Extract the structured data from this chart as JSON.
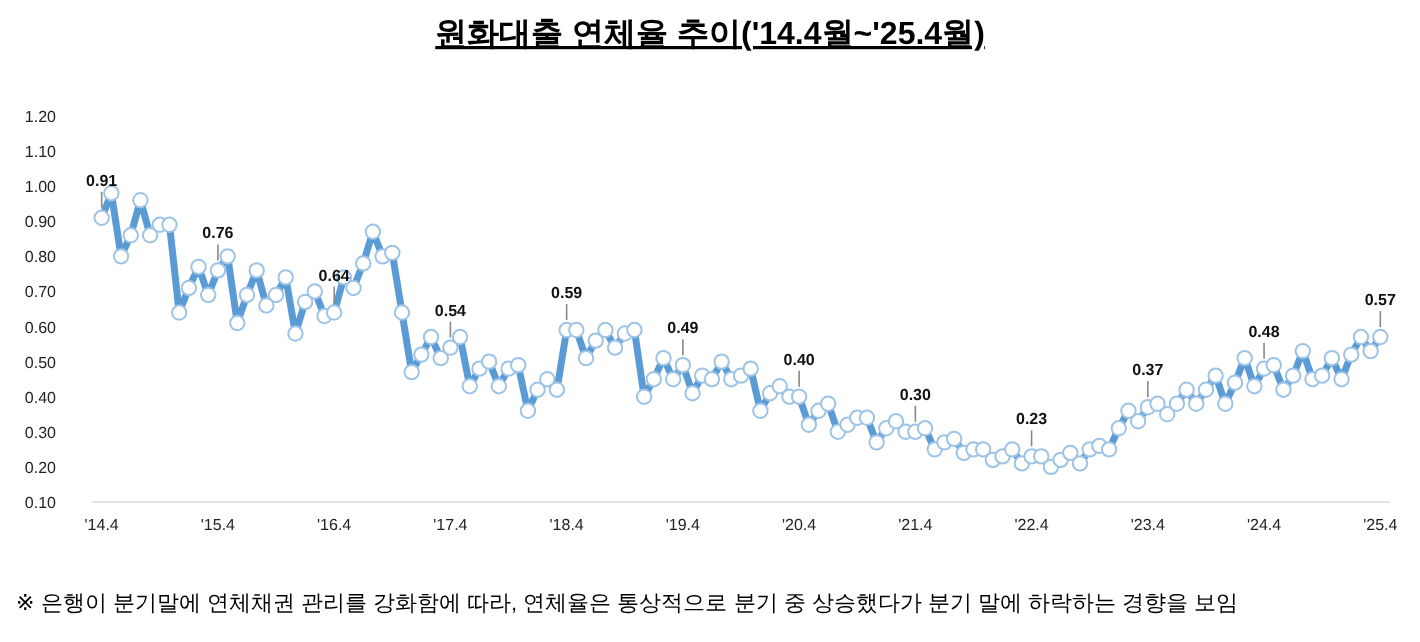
{
  "chart_data": {
    "type": "line",
    "title": "원화대출 연체율 추이('14.4월~'25.4월)",
    "x": [
      "2014-04",
      "2014-05",
      "2014-06",
      "2014-07",
      "2014-08",
      "2014-09",
      "2014-10",
      "2014-11",
      "2014-12",
      "2015-01",
      "2015-02",
      "2015-03",
      "2015-04",
      "2015-05",
      "2015-06",
      "2015-07",
      "2015-08",
      "2015-09",
      "2015-10",
      "2015-11",
      "2015-12",
      "2016-01",
      "2016-02",
      "2016-03",
      "2016-04",
      "2016-05",
      "2016-06",
      "2016-07",
      "2016-08",
      "2016-09",
      "2016-10",
      "2016-11",
      "2016-12",
      "2017-01",
      "2017-02",
      "2017-03",
      "2017-04",
      "2017-05",
      "2017-06",
      "2017-07",
      "2017-08",
      "2017-09",
      "2017-10",
      "2017-11",
      "2017-12",
      "2018-01",
      "2018-02",
      "2018-03",
      "2018-04",
      "2018-05",
      "2018-06",
      "2018-07",
      "2018-08",
      "2018-09",
      "2018-10",
      "2018-11",
      "2018-12",
      "2019-01",
      "2019-02",
      "2019-03",
      "2019-04",
      "2019-05",
      "2019-06",
      "2019-07",
      "2019-08",
      "2019-09",
      "2019-10",
      "2019-11",
      "2019-12",
      "2020-01",
      "2020-02",
      "2020-03",
      "2020-04",
      "2020-05",
      "2020-06",
      "2020-07",
      "2020-08",
      "2020-09",
      "2020-10",
      "2020-11",
      "2020-12",
      "2021-01",
      "2021-02",
      "2021-03",
      "2021-04",
      "2021-05",
      "2021-06",
      "2021-07",
      "2021-08",
      "2021-09",
      "2021-10",
      "2021-11",
      "2021-12",
      "2022-01",
      "2022-02",
      "2022-03",
      "2022-04",
      "2022-05",
      "2022-06",
      "2022-07",
      "2022-08",
      "2022-09",
      "2022-10",
      "2022-11",
      "2022-12",
      "2023-01",
      "2023-02",
      "2023-03",
      "2023-04",
      "2023-05",
      "2023-06",
      "2023-07",
      "2023-08",
      "2023-09",
      "2023-10",
      "2023-11",
      "2023-12",
      "2024-01",
      "2024-02",
      "2024-03",
      "2024-04",
      "2024-05",
      "2024-06",
      "2024-07",
      "2024-08",
      "2024-09",
      "2024-10",
      "2024-11",
      "2024-12",
      "2025-01",
      "2025-02",
      "2025-03",
      "2025-04"
    ],
    "series": [
      {
        "color": "#5b9bd5",
        "values": [
          0.91,
          0.98,
          0.8,
          0.86,
          0.96,
          0.86,
          0.89,
          0.89,
          0.64,
          0.71,
          0.77,
          0.69,
          0.76,
          0.8,
          0.61,
          0.69,
          0.76,
          0.66,
          0.69,
          0.74,
          0.58,
          0.67,
          0.7,
          0.63,
          0.64,
          0.74,
          0.71,
          0.78,
          0.87,
          0.8,
          0.81,
          0.64,
          0.47,
          0.52,
          0.57,
          0.51,
          0.54,
          0.57,
          0.43,
          0.48,
          0.5,
          0.43,
          0.48,
          0.49,
          0.36,
          0.42,
          0.45,
          0.42,
          0.59,
          0.59,
          0.51,
          0.56,
          0.59,
          0.54,
          0.58,
          0.59,
          0.4,
          0.45,
          0.51,
          0.45,
          0.49,
          0.41,
          0.46,
          0.45,
          0.5,
          0.45,
          0.46,
          0.48,
          0.36,
          0.41,
          0.43,
          0.4,
          0.4,
          0.32,
          0.36,
          0.38,
          0.3,
          0.32,
          0.34,
          0.34,
          0.27,
          0.31,
          0.33,
          0.3,
          0.3,
          0.31,
          0.25,
          0.27,
          0.28,
          0.24,
          0.25,
          0.25,
          0.22,
          0.23,
          0.25,
          0.21,
          0.23,
          0.23,
          0.2,
          0.22,
          0.24,
          0.21,
          0.25,
          0.26,
          0.25,
          0.31,
          0.36,
          0.33,
          0.37,
          0.38,
          0.35,
          0.38,
          0.42,
          0.38,
          0.42,
          0.46,
          0.38,
          0.44,
          0.51,
          0.43,
          0.48,
          0.49,
          0.42,
          0.46,
          0.53,
          0.45,
          0.46,
          0.51,
          0.45,
          0.52,
          0.57,
          0.53,
          0.57
        ]
      }
    ],
    "marker": "circle",
    "xlim": [
      "2014-03",
      "2025-05"
    ],
    "xticks": [
      {
        "value": "2014-04",
        "label": "'14.4"
      },
      {
        "value": "2015-04",
        "label": "'15.4"
      },
      {
        "value": "2016-04",
        "label": "'16.4"
      },
      {
        "value": "2017-04",
        "label": "'17.4"
      },
      {
        "value": "2018-04",
        "label": "'18.4"
      },
      {
        "value": "2019-04",
        "label": "'19.4"
      },
      {
        "value": "2020-04",
        "label": "'20.4"
      },
      {
        "value": "2021-04",
        "label": "'21.4"
      },
      {
        "value": "2022-04",
        "label": "'22.4"
      },
      {
        "value": "2023-04",
        "label": "'23.4"
      },
      {
        "value": "2024-04",
        "label": "'24.4"
      },
      {
        "value": "2025-04",
        "label": "'25.4"
      }
    ],
    "ylim": [
      0.1,
      1.2
    ],
    "yticks": [
      {
        "value": 0.1,
        "label": "0.10"
      },
      {
        "value": 0.2,
        "label": "0.20"
      },
      {
        "value": 0.3,
        "label": "0.30"
      },
      {
        "value": 0.4,
        "label": "0.40"
      },
      {
        "value": 0.5,
        "label": "0.50"
      },
      {
        "value": 0.6,
        "label": "0.60"
      },
      {
        "value": 0.7,
        "label": "0.70"
      },
      {
        "value": 0.8,
        "label": "0.80"
      },
      {
        "value": 0.9,
        "label": "0.90"
      },
      {
        "value": 1.0,
        "label": "1.00"
      },
      {
        "value": 1.1,
        "label": "1.10"
      },
      {
        "value": 1.2,
        "label": "1.20"
      }
    ],
    "annotations": [
      {
        "text": "0.91",
        "x": "2014-04",
        "y": 0.91
      },
      {
        "text": "0.76",
        "x": "2015-04",
        "y": 0.76
      },
      {
        "text": "0.64",
        "x": "2016-04",
        "y": 0.64
      },
      {
        "text": "0.54",
        "x": "2017-04",
        "y": 0.54
      },
      {
        "text": "0.59",
        "x": "2018-04",
        "y": 0.59
      },
      {
        "text": "0.49",
        "x": "2019-04",
        "y": 0.49
      },
      {
        "text": "0.40",
        "x": "2020-04",
        "y": 0.4
      },
      {
        "text": "0.30",
        "x": "2021-04",
        "y": 0.3
      },
      {
        "text": "0.23",
        "x": "2022-04",
        "y": 0.23
      },
      {
        "text": "0.37",
        "x": "2023-04",
        "y": 0.37
      },
      {
        "text": "0.48",
        "x": "2024-04",
        "y": 0.48
      },
      {
        "text": "0.57",
        "x": "2025-04",
        "y": 0.57
      },
      "※ 은행이 분기말에 연체채권 관리를 강화함에 따라, 연체율은 통상적으로 분기 중 상승했다가 분기 말에 하락하는 경향을 보임"
    ]
  }
}
